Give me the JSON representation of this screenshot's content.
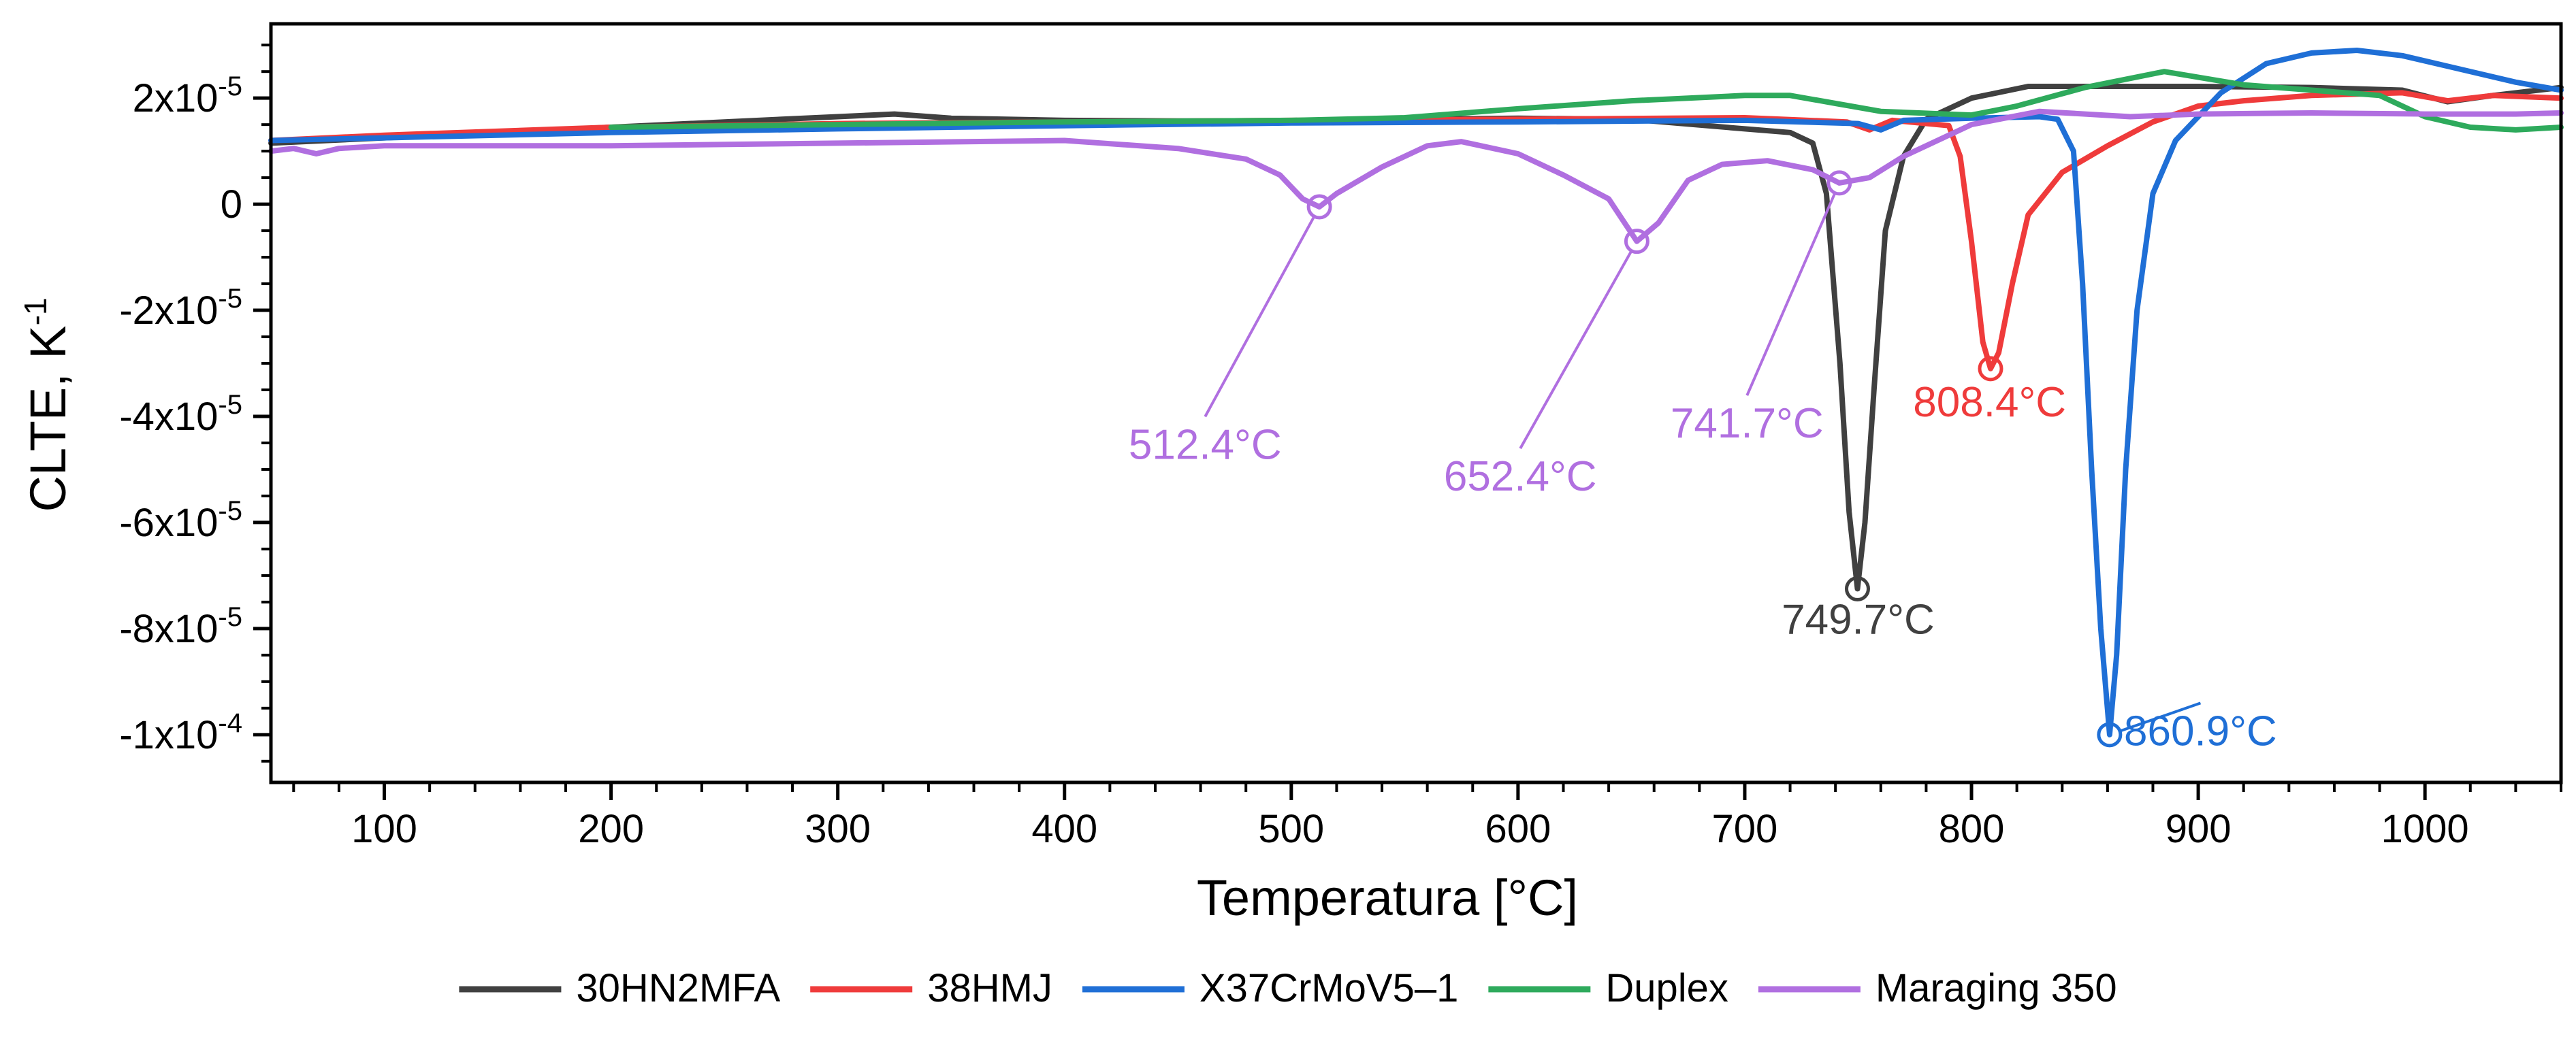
{
  "chart_data": {
    "type": "line",
    "title": "",
    "xlabel": "Temperatura [°C]",
    "ylabel": "CLTE, K",
    "ylabel_superscript": "-1",
    "xlim": [
      50,
      1060
    ],
    "ylim": [
      -0.000109,
      3.4e-05
    ],
    "grid": false,
    "legend_position": "bottom",
    "x_ticks": [
      {
        "value": 100,
        "label": "100"
      },
      {
        "value": 200,
        "label": "200"
      },
      {
        "value": 300,
        "label": "300"
      },
      {
        "value": 400,
        "label": "400"
      },
      {
        "value": 500,
        "label": "500"
      },
      {
        "value": 600,
        "label": "600"
      },
      {
        "value": 700,
        "label": "700"
      },
      {
        "value": 800,
        "label": "800"
      },
      {
        "value": 900,
        "label": "900"
      },
      {
        "value": 1000,
        "label": "1000"
      }
    ],
    "y_ticks": [
      {
        "value": 2e-05,
        "base": "2x10",
        "exp": "-5"
      },
      {
        "value": 0,
        "base": "0",
        "exp": ""
      },
      {
        "value": -2e-05,
        "base": "-2x10",
        "exp": "-5"
      },
      {
        "value": -4e-05,
        "base": "-4x10",
        "exp": "-5"
      },
      {
        "value": -6e-05,
        "base": "-6x10",
        "exp": "-5"
      },
      {
        "value": -8e-05,
        "base": "-8x10",
        "exp": "-5"
      },
      {
        "value": -0.0001,
        "base": "-1x10",
        "exp": "-4"
      }
    ],
    "series": [
      {
        "name": "30HN2MFA",
        "color": "#404040",
        "points": [
          [
            50,
            1.15e-05
          ],
          [
            100,
            1.25e-05
          ],
          [
            150,
            1.35e-05
          ],
          [
            200,
            1.45e-05
          ],
          [
            250,
            1.55e-05
          ],
          [
            300,
            1.65e-05
          ],
          [
            325,
            1.7e-05
          ],
          [
            350,
            1.62e-05
          ],
          [
            400,
            1.58e-05
          ],
          [
            450,
            1.57e-05
          ],
          [
            500,
            1.57e-05
          ],
          [
            550,
            1.6e-05
          ],
          [
            600,
            1.62e-05
          ],
          [
            650,
            1.6e-05
          ],
          [
            700,
            1.42e-05
          ],
          [
            720,
            1.35e-05
          ],
          [
            730,
            1.15e-05
          ],
          [
            736,
            2e-06
          ],
          [
            742,
            -3e-05
          ],
          [
            746,
            -5.8e-05
          ],
          [
            749.7,
            -7.25e-05
          ],
          [
            753,
            -6e-05
          ],
          [
            757,
            -3.5e-05
          ],
          [
            762,
            -5e-06
          ],
          [
            770,
            9e-06
          ],
          [
            780,
            1.6e-05
          ],
          [
            800,
            2e-05
          ],
          [
            825,
            2.22e-05
          ],
          [
            850,
            2.22e-05
          ],
          [
            900,
            2.22e-05
          ],
          [
            950,
            2.2e-05
          ],
          [
            990,
            2.15e-05
          ],
          [
            1010,
            1.93e-05
          ],
          [
            1030,
            2.05e-05
          ],
          [
            1060,
            2.2e-05
          ]
        ]
      },
      {
        "name": "38HMJ",
        "color": "#ef3b3b",
        "points": [
          [
            50,
            1.2e-05
          ],
          [
            100,
            1.3e-05
          ],
          [
            200,
            1.45e-05
          ],
          [
            300,
            1.52e-05
          ],
          [
            400,
            1.55e-05
          ],
          [
            500,
            1.58e-05
          ],
          [
            600,
            1.6e-05
          ],
          [
            700,
            1.63e-05
          ],
          [
            745,
            1.55e-05
          ],
          [
            755,
            1.4e-05
          ],
          [
            765,
            1.58e-05
          ],
          [
            790,
            1.48e-05
          ],
          [
            795,
            9e-06
          ],
          [
            800,
            -7e-06
          ],
          [
            805,
            -2.6e-05
          ],
          [
            808.4,
            -3.1e-05
          ],
          [
            812,
            -2.8e-05
          ],
          [
            818,
            -1.5e-05
          ],
          [
            825,
            -2e-06
          ],
          [
            840,
            6e-06
          ],
          [
            860,
            1.1e-05
          ],
          [
            880,
            1.55e-05
          ],
          [
            900,
            1.85e-05
          ],
          [
            920,
            1.95e-05
          ],
          [
            950,
            2.05e-05
          ],
          [
            990,
            2.1e-05
          ],
          [
            1010,
            1.95e-05
          ],
          [
            1030,
            2.05e-05
          ],
          [
            1060,
            2e-05
          ]
        ]
      },
      {
        "name": "X37CrMoV5–1",
        "color": "#1f6fd6",
        "points": [
          [
            50,
            1.2e-05
          ],
          [
            100,
            1.25e-05
          ],
          [
            200,
            1.35e-05
          ],
          [
            300,
            1.42e-05
          ],
          [
            400,
            1.48e-05
          ],
          [
            500,
            1.53e-05
          ],
          [
            600,
            1.55e-05
          ],
          [
            700,
            1.58e-05
          ],
          [
            750,
            1.52e-05
          ],
          [
            760,
            1.4e-05
          ],
          [
            770,
            1.58e-05
          ],
          [
            800,
            1.62e-05
          ],
          [
            830,
            1.65e-05
          ],
          [
            838,
            1.6e-05
          ],
          [
            845,
            1e-05
          ],
          [
            849,
            -1.5e-05
          ],
          [
            853,
            -5e-05
          ],
          [
            857,
            -8e-05
          ],
          [
            860.9,
            -0.0001
          ],
          [
            864,
            -8.5e-05
          ],
          [
            868,
            -5e-05
          ],
          [
            873,
            -2e-05
          ],
          [
            880,
            2e-06
          ],
          [
            890,
            1.2e-05
          ],
          [
            910,
            2.1e-05
          ],
          [
            930,
            2.65e-05
          ],
          [
            950,
            2.85e-05
          ],
          [
            970,
            2.9e-05
          ],
          [
            990,
            2.8e-05
          ],
          [
            1010,
            2.6e-05
          ],
          [
            1040,
            2.3e-05
          ],
          [
            1060,
            2.15e-05
          ]
        ]
      },
      {
        "name": "Duplex",
        "color": "#2eaa5c",
        "points": [
          [
            200,
            1.45e-05
          ],
          [
            300,
            1.5e-05
          ],
          [
            400,
            1.55e-05
          ],
          [
            500,
            1.58e-05
          ],
          [
            550,
            1.63e-05
          ],
          [
            600,
            1.8e-05
          ],
          [
            650,
            1.95e-05
          ],
          [
            700,
            2.05e-05
          ],
          [
            720,
            2.05e-05
          ],
          [
            740,
            1.9e-05
          ],
          [
            760,
            1.75e-05
          ],
          [
            800,
            1.68e-05
          ],
          [
            820,
            1.85e-05
          ],
          [
            850,
            2.2e-05
          ],
          [
            885,
            2.5e-05
          ],
          [
            920,
            2.25e-05
          ],
          [
            950,
            2.15e-05
          ],
          [
            980,
            2.05e-05
          ],
          [
            1000,
            1.65e-05
          ],
          [
            1020,
            1.45e-05
          ],
          [
            1040,
            1.4e-05
          ],
          [
            1060,
            1.45e-05
          ]
        ]
      },
      {
        "name": "Maraging 350",
        "color": "#b06fe0",
        "points": [
          [
            50,
            1e-05
          ],
          [
            60,
            1.05e-05
          ],
          [
            70,
            9.5e-06
          ],
          [
            80,
            1.05e-05
          ],
          [
            100,
            1.1e-05
          ],
          [
            200,
            1.1e-05
          ],
          [
            300,
            1.15e-05
          ],
          [
            400,
            1.2e-05
          ],
          [
            450,
            1.05e-05
          ],
          [
            480,
            8.5e-06
          ],
          [
            495,
            5.5e-06
          ],
          [
            505,
            1e-06
          ],
          [
            512.4,
            -5e-07
          ],
          [
            520,
            2e-06
          ],
          [
            540,
            7e-06
          ],
          [
            560,
            1.1e-05
          ],
          [
            575,
            1.18e-05
          ],
          [
            600,
            9.5e-06
          ],
          [
            620,
            5.5e-06
          ],
          [
            640,
            1e-06
          ],
          [
            652.4,
            -7e-06
          ],
          [
            662,
            -3.5e-06
          ],
          [
            675,
            4.5e-06
          ],
          [
            690,
            7.5e-06
          ],
          [
            710,
            8.2e-06
          ],
          [
            730,
            6.5e-06
          ],
          [
            741.7,
            4e-06
          ],
          [
            755,
            5e-06
          ],
          [
            770,
            9e-06
          ],
          [
            800,
            1.5e-05
          ],
          [
            830,
            1.75e-05
          ],
          [
            870,
            1.65e-05
          ],
          [
            900,
            1.7e-05
          ],
          [
            950,
            1.72e-05
          ],
          [
            1000,
            1.7e-05
          ],
          [
            1040,
            1.7e-05
          ],
          [
            1060,
            1.72e-05
          ]
        ]
      }
    ],
    "annotations": [
      {
        "label": "512.4°C",
        "series": "Maraging 350",
        "color": "#b06fe0",
        "x": 512.4,
        "y": -5e-07,
        "label_x": 462,
        "label_y": -4.8e-05
      },
      {
        "label": "652.4°C",
        "series": "Maraging 350",
        "color": "#b06fe0",
        "x": 652.4,
        "y": -7e-06,
        "label_x": 601,
        "label_y": -5.4e-05
      },
      {
        "label": "741.7°C",
        "series": "Maraging 350",
        "color": "#b06fe0",
        "x": 741.7,
        "y": 4e-06,
        "label_x": 701,
        "label_y": -4.4e-05
      },
      {
        "label": "808.4°C",
        "series": "38HMJ",
        "color": "#ef3b3b",
        "x": 808.4,
        "y": -3.1e-05,
        "label_x": 808,
        "label_y": -4e-05
      },
      {
        "label": "749.7°C",
        "series": "30HN2MFA",
        "color": "#404040",
        "x": 749.7,
        "y": -7.25e-05,
        "label_x": 750,
        "label_y": -8.1e-05
      },
      {
        "label": "860.9°C",
        "series": "X37CrMoV5–1",
        "color": "#1f6fd6",
        "x": 860.9,
        "y": -0.0001,
        "label_x": 901,
        "label_y": -0.000102
      }
    ]
  }
}
